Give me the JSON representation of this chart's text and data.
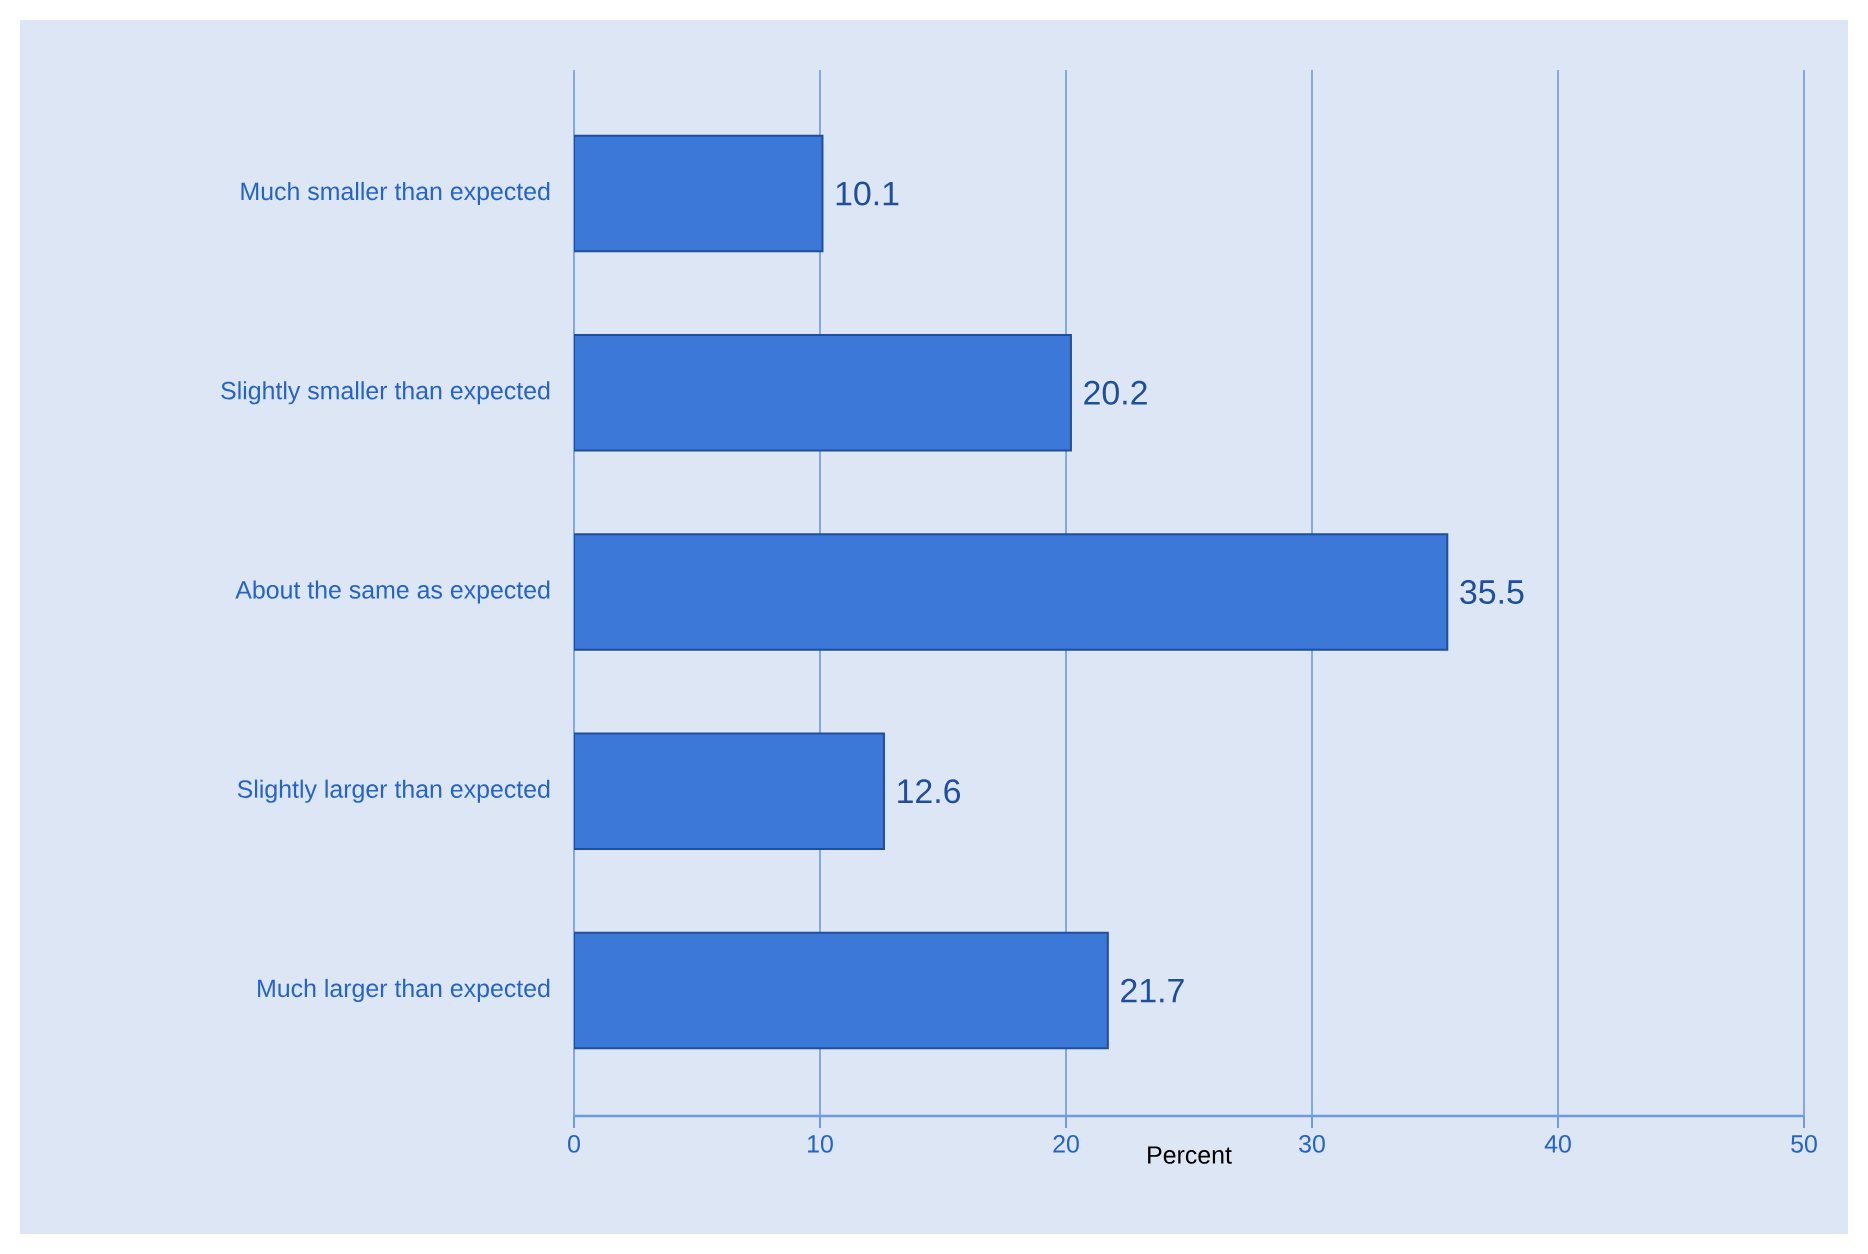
{
  "chart_data": {
    "type": "bar",
    "orientation": "horizontal",
    "categories": [
      "Much smaller than expected",
      "Slightly smaller than expected",
      "About the same as expected",
      "Slightly larger than expected",
      "Much larger than expected"
    ],
    "values": [
      10.1,
      20.2,
      35.5,
      12.6,
      21.7
    ],
    "color": "#3c78d8",
    "xlabel": "Percent",
    "xlim": [
      0,
      50
    ],
    "xticks": [
      0,
      10,
      20,
      30,
      40,
      50
    ],
    "grid": "x",
    "data_labels": true
  }
}
